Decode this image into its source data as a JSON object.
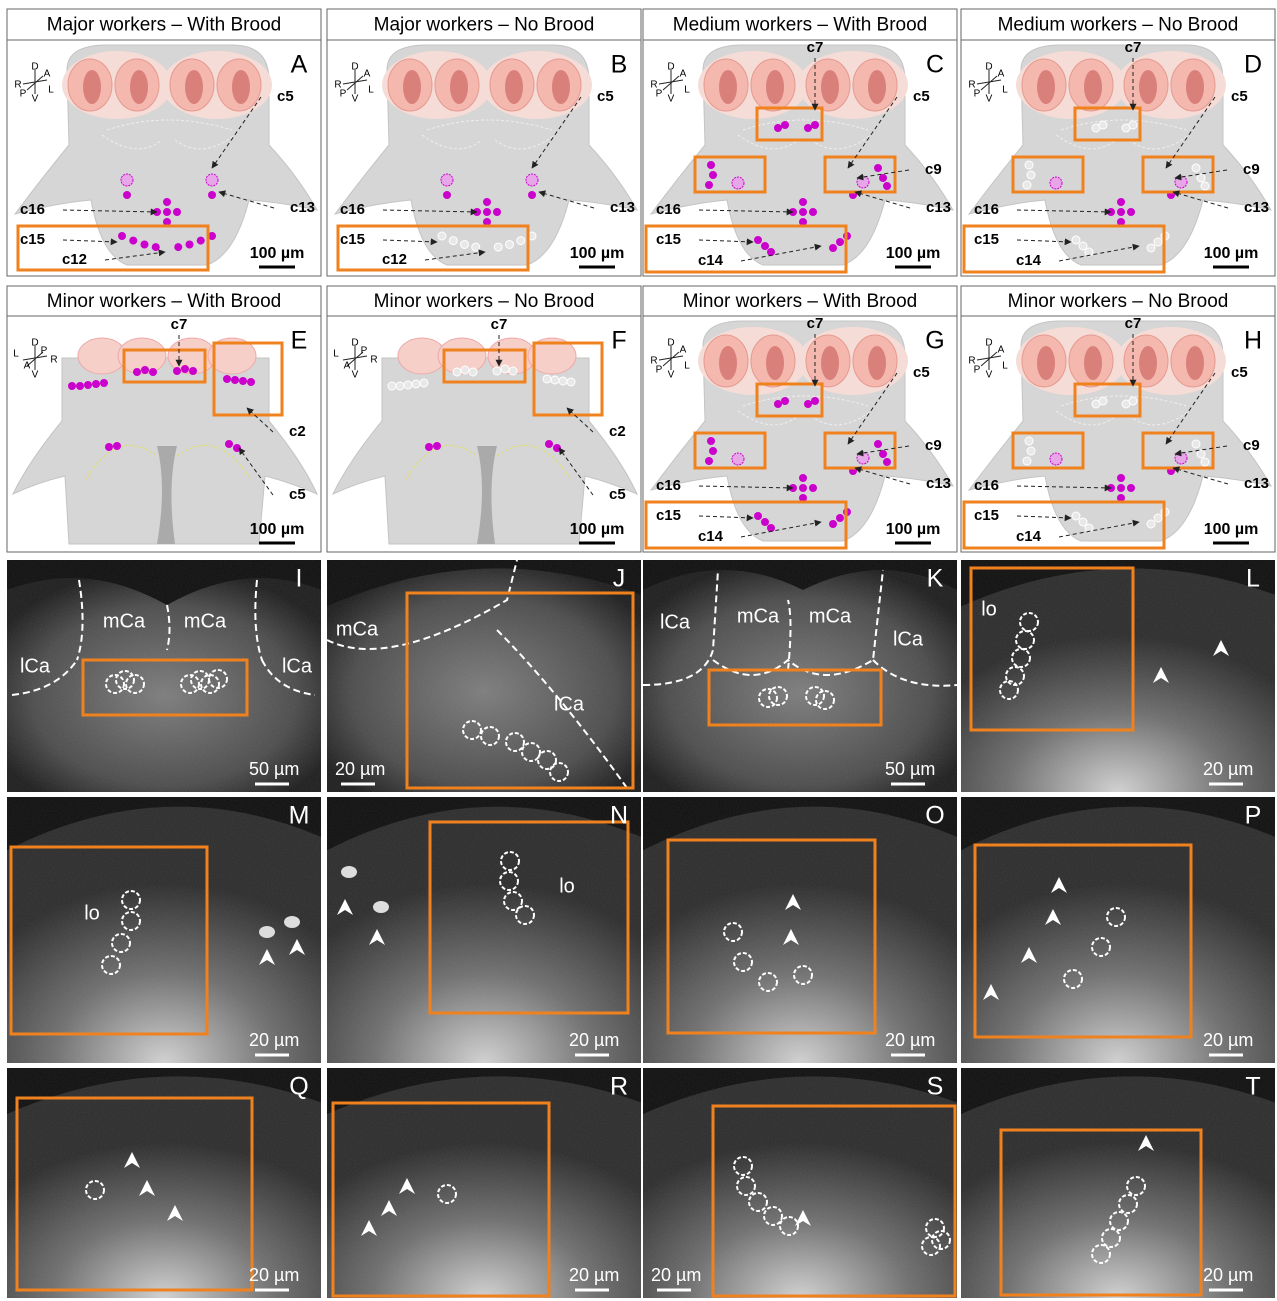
{
  "diagram_panels": [
    {
      "title": "Major workers – With Brood",
      "letter": "A",
      "orientation": [
        "D",
        "A",
        "L",
        "R",
        "P",
        "V"
      ],
      "cell_labels": [
        "c5",
        "c13",
        "c16",
        "c15",
        "c12"
      ],
      "scale_bar": "100 µm"
    },
    {
      "title": "Major workers – No Brood",
      "letter": "B",
      "orientation": [
        "D",
        "A",
        "L",
        "R",
        "P",
        "V"
      ],
      "cell_labels": [
        "c5",
        "c13",
        "c16",
        "c15",
        "c12"
      ],
      "scale_bar": "100 µm"
    },
    {
      "title": "Medium workers – With Brood",
      "letter": "C",
      "orientation": [
        "D",
        "A",
        "L",
        "R",
        "P",
        "V"
      ],
      "cell_labels": [
        "c7",
        "c5",
        "c9",
        "c13",
        "c16",
        "c15",
        "c14"
      ],
      "scale_bar": "100 µm"
    },
    {
      "title": "Medium workers – No Brood",
      "letter": "D",
      "orientation": [
        "D",
        "A",
        "L",
        "R",
        "P",
        "V"
      ],
      "cell_labels": [
        "c7",
        "c5",
        "c9",
        "c13",
        "c16",
        "c15",
        "c14"
      ],
      "scale_bar": "100 µm"
    },
    {
      "title": "Minor workers – With Brood",
      "letter": "E",
      "orientation": [
        "D",
        "L",
        "A",
        "P",
        "R",
        "V"
      ],
      "cell_labels": [
        "c7",
        "c2",
        "c5"
      ],
      "scale_bar": "100 µm"
    },
    {
      "title": "Minor workers – No Brood",
      "letter": "F",
      "orientation": [
        "D",
        "L",
        "A",
        "P",
        "R",
        "V"
      ],
      "cell_labels": [
        "c7",
        "c2",
        "c5"
      ],
      "scale_bar": "100 µm"
    },
    {
      "title": "Minor workers – With Brood",
      "letter": "G",
      "orientation": [
        "D",
        "A",
        "L",
        "R",
        "P",
        "V"
      ],
      "cell_labels": [
        "c7",
        "c5",
        "c9",
        "c13",
        "c16",
        "c15",
        "c14"
      ],
      "scale_bar": "100 µm"
    },
    {
      "title": "Minor workers – No Brood",
      "letter": "H",
      "orientation": [
        "D",
        "A",
        "L",
        "R",
        "P",
        "V"
      ],
      "cell_labels": [
        "c7",
        "c5",
        "c9",
        "c13",
        "c16",
        "c15",
        "c14"
      ],
      "scale_bar": "100 µm"
    }
  ],
  "micrograph_panels": [
    {
      "letter": "I",
      "scale_bar": "50 µm",
      "region_labels": [
        "mCa",
        "mCa",
        "lCa",
        "lCa"
      ]
    },
    {
      "letter": "J",
      "scale_bar": "20 µm",
      "region_labels": [
        "mCa",
        "lCa"
      ]
    },
    {
      "letter": "K",
      "scale_bar": "50 µm",
      "region_labels": [
        "lCa",
        "mCa",
        "mCa",
        "lCa"
      ]
    },
    {
      "letter": "L",
      "scale_bar": "20 µm",
      "region_labels": [
        "lo"
      ]
    },
    {
      "letter": "M",
      "scale_bar": "20 µm",
      "region_labels": [
        "lo"
      ]
    },
    {
      "letter": "N",
      "scale_bar": "20 µm",
      "region_labels": [
        "lo"
      ]
    },
    {
      "letter": "O",
      "scale_bar": "20 µm"
    },
    {
      "letter": "P",
      "scale_bar": "20 µm"
    },
    {
      "letter": "Q",
      "scale_bar": "20 µm"
    },
    {
      "letter": "R",
      "scale_bar": "20 µm"
    },
    {
      "letter": "S",
      "scale_bar": "20 µm"
    },
    {
      "letter": "T",
      "scale_bar": "20 µm"
    }
  ]
}
